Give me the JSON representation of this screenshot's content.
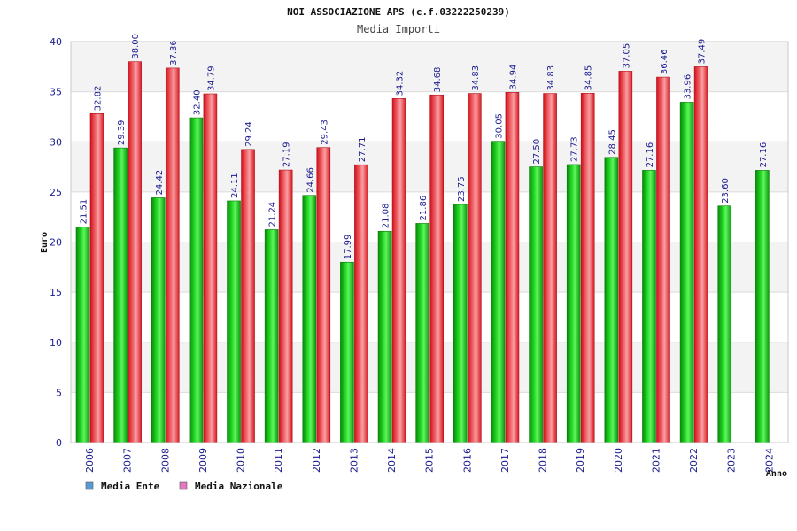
{
  "chart_data": {
    "type": "bar",
    "title": "NOI ASSOCIAZIONE APS (c.f.03222250239)",
    "subtitle": "Media Importi",
    "xlabel": "Anno",
    "ylabel": "Euro",
    "ylim": [
      0,
      40
    ],
    "yticks": [
      0,
      5,
      10,
      15,
      20,
      25,
      30,
      35,
      40
    ],
    "categories": [
      "2006",
      "2007",
      "2008",
      "2009",
      "2010",
      "2011",
      "2012",
      "2013",
      "2014",
      "2015",
      "2016",
      "2017",
      "2018",
      "2019",
      "2020",
      "2021",
      "2022",
      "2023",
      "2024"
    ],
    "series": [
      {
        "name": "Media Ente",
        "color": "#0fb80f",
        "values": [
          21.51,
          29.39,
          24.42,
          32.4,
          24.11,
          21.24,
          24.66,
          17.99,
          21.08,
          21.86,
          23.75,
          30.05,
          27.5,
          27.73,
          28.45,
          27.16,
          33.96,
          23.6,
          27.16
        ],
        "labels": [
          "21.51",
          "29.39",
          "24.42",
          "32.40",
          "24.11",
          "21.24",
          "24.66",
          "17.99",
          "21.08",
          "21.86",
          "23.75",
          "30.05",
          "27.50",
          "27.73",
          "28.45",
          "27.16",
          "33.96",
          "23.60",
          "27.16"
        ]
      },
      {
        "name": "Media Nazionale",
        "color": "#e8222a",
        "values": [
          32.82,
          38.0,
          37.36,
          34.79,
          29.24,
          27.19,
          29.43,
          27.71,
          34.32,
          34.68,
          34.83,
          34.94,
          34.83,
          34.85,
          37.05,
          36.46,
          37.49,
          null,
          null
        ],
        "labels": [
          "32.82",
          "38.00",
          "37.36",
          "34.79",
          "29.24",
          "27.19",
          "29.43",
          "27.71",
          "34.32",
          "34.68",
          "34.83",
          "34.94",
          "34.83",
          "34.85",
          "37.05",
          "36.46",
          "37.49",
          null,
          null
        ]
      }
    ],
    "legend": {
      "position": "bottom-left",
      "items": [
        {
          "label": "Media Ente",
          "color": "#5b9bd5"
        },
        {
          "label": "Media Nazionale",
          "color": "#e377c2"
        }
      ]
    },
    "grid": true
  }
}
